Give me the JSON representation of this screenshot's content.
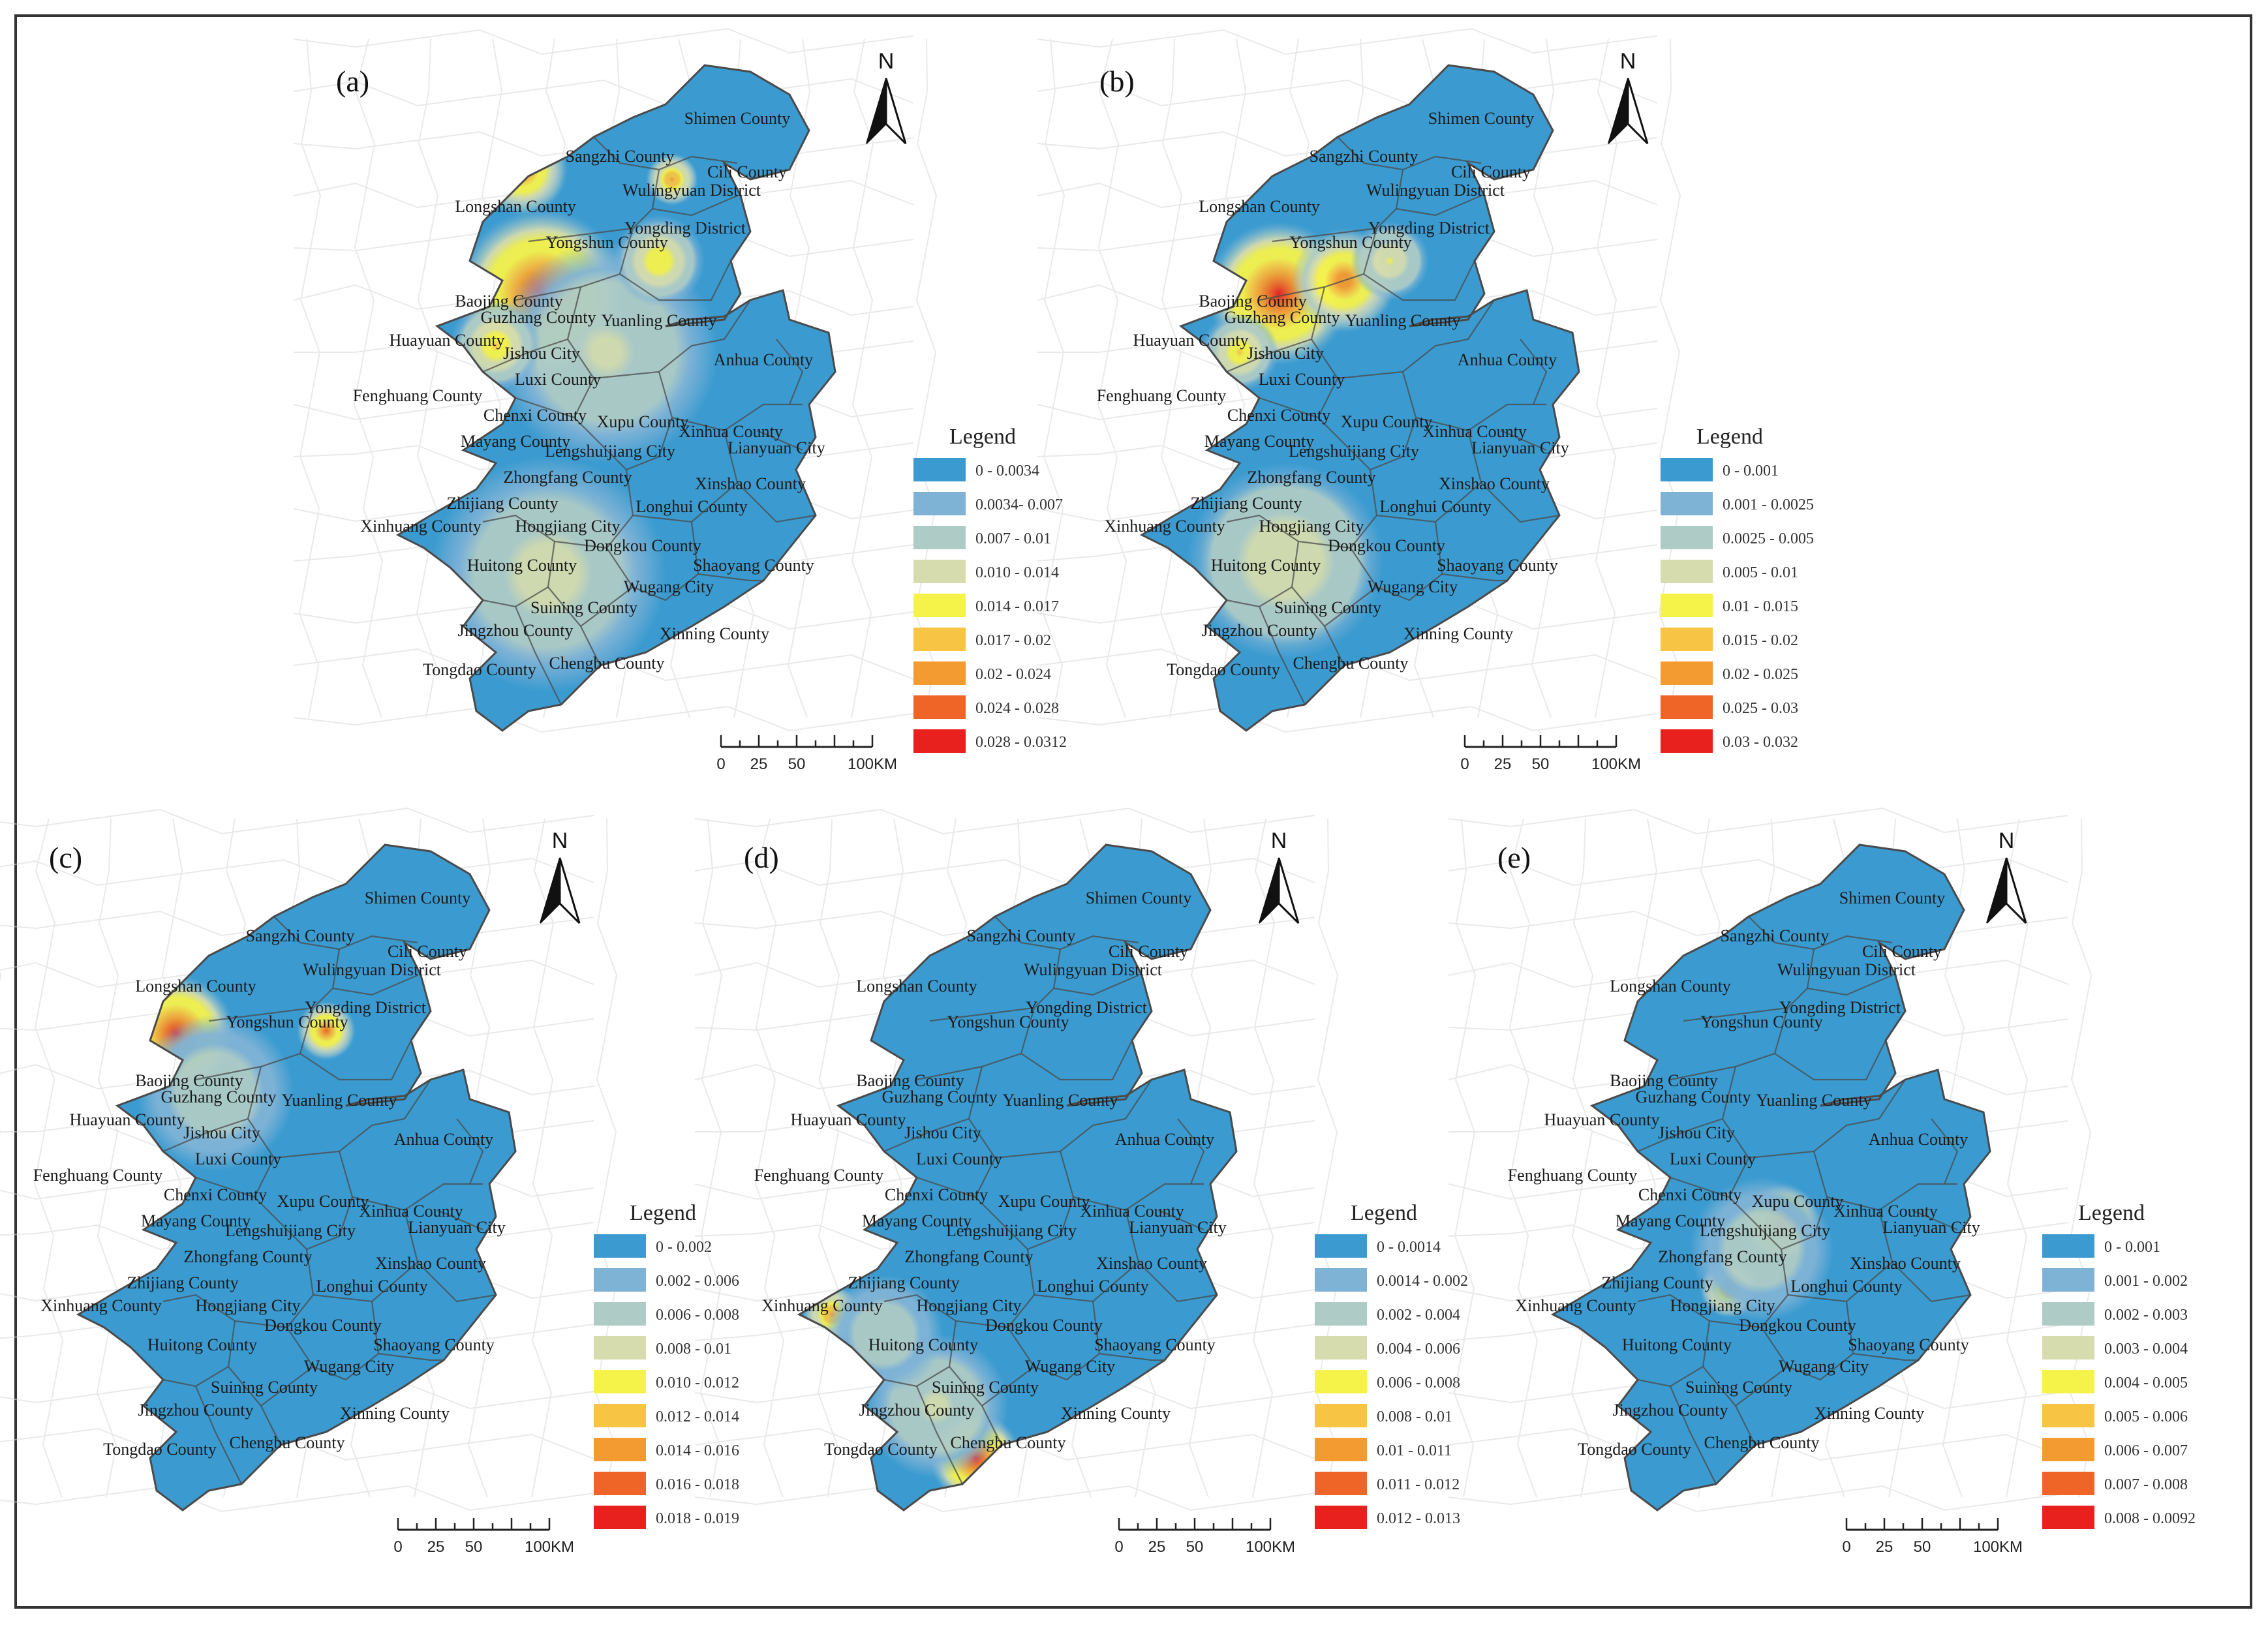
{
  "figure": {
    "panels": [
      {
        "id": "a",
        "label": "(a)",
        "legend_title": "Legend",
        "legend": [
          {
            "range": "0 - 0.0034",
            "color": "#3b9bd0"
          },
          {
            "range": "0.0034- 0.007",
            "color": "#7fb3d6"
          },
          {
            "range": "0.007 - 0.01",
            "color": "#aecbc6"
          },
          {
            "range": "0.010 - 0.014",
            "color": "#d6dcad"
          },
          {
            "range": "0.014 - 0.017",
            "color": "#f5f24a"
          },
          {
            "range": "0.017 - 0.02",
            "color": "#f7c443"
          },
          {
            "range": "0.02 - 0.024",
            "color": "#f39a30"
          },
          {
            "range": "0.024 - 0.028",
            "color": "#ef6427"
          },
          {
            "range": "0.028 - 0.0312",
            "color": "#e8201e"
          }
        ],
        "scale": [
          "0",
          "25",
          "50",
          "100KM"
        ],
        "north": "N",
        "hotspots": [
          "Jishou City",
          "Yongshun County",
          "Yongding District"
        ]
      },
      {
        "id": "b",
        "label": "(b)",
        "legend_title": "Legend",
        "legend": [
          {
            "range": "0 - 0.001",
            "color": "#3b9bd0"
          },
          {
            "range": "0.001 - 0.0025",
            "color": "#7fb3d6"
          },
          {
            "range": "0.0025 - 0.005",
            "color": "#aecbc6"
          },
          {
            "range": "0.005 - 0.01",
            "color": "#d6dcad"
          },
          {
            "range": "0.01 - 0.015",
            "color": "#f5f24a"
          },
          {
            "range": "0.015 - 0.02",
            "color": "#f7c443"
          },
          {
            "range": "0.02 - 0.025",
            "color": "#f39a30"
          },
          {
            "range": "0.025 - 0.03",
            "color": "#ef6427"
          },
          {
            "range": "0.03 - 0.032",
            "color": "#e8201e"
          }
        ],
        "scale": [
          "0",
          "25",
          "50",
          "100KM"
        ],
        "north": "N",
        "hotspots": [
          "Jishou City",
          "Guzhang County"
        ]
      },
      {
        "id": "c",
        "label": "(c)",
        "legend_title": "Legend",
        "legend": [
          {
            "range": "0 - 0.002",
            "color": "#3b9bd0"
          },
          {
            "range": "0.002 - 0.006",
            "color": "#7fb3d6"
          },
          {
            "range": "0.006 - 0.008",
            "color": "#aecbc6"
          },
          {
            "range": "0.008 - 0.01",
            "color": "#d6dcad"
          },
          {
            "range": "0.010 - 0.012",
            "color": "#f5f24a"
          },
          {
            "range": "0.012 - 0.014",
            "color": "#f7c443"
          },
          {
            "range": "0.014 - 0.016",
            "color": "#f39a30"
          },
          {
            "range": "0.016 - 0.018",
            "color": "#ef6427"
          },
          {
            "range": "0.018 - 0.019",
            "color": "#e8201e"
          }
        ],
        "scale": [
          "0",
          "25",
          "50",
          "100KM"
        ],
        "north": "N",
        "hotspots": [
          "Yongshun County",
          "Yongding District"
        ]
      },
      {
        "id": "d",
        "label": "(d)",
        "legend_title": "Legend",
        "legend": [
          {
            "range": "0 - 0.0014",
            "color": "#3b9bd0"
          },
          {
            "range": "0.0014 - 0.002",
            "color": "#7fb3d6"
          },
          {
            "range": "0.002 - 0.004",
            "color": "#aecbc6"
          },
          {
            "range": "0.004 - 0.006",
            "color": "#d6dcad"
          },
          {
            "range": "0.006 - 0.008",
            "color": "#f5f24a"
          },
          {
            "range": "0.008 - 0.01",
            "color": "#f7c443"
          },
          {
            "range": "0.01 - 0.011",
            "color": "#f39a30"
          },
          {
            "range": "0.011 - 0.012",
            "color": "#ef6427"
          },
          {
            "range": "0.012 - 0.013",
            "color": "#e8201e"
          }
        ],
        "scale": [
          "0",
          "25",
          "50",
          "100KM"
        ],
        "north": "N",
        "hotspots": [
          "Tongdao County",
          "Xinhuang County"
        ]
      },
      {
        "id": "e",
        "label": "(e)",
        "legend_title": "Legend",
        "legend": [
          {
            "range": "0 - 0.001",
            "color": "#3b9bd0"
          },
          {
            "range": "0.001 - 0.002",
            "color": "#7fb3d6"
          },
          {
            "range": "0.002 - 0.003",
            "color": "#aecbc6"
          },
          {
            "range": "0.003 - 0.004",
            "color": "#d6dcad"
          },
          {
            "range": "0.004 - 0.005",
            "color": "#f5f24a"
          },
          {
            "range": "0.005 - 0.006",
            "color": "#f7c443"
          },
          {
            "range": "0.006 - 0.007",
            "color": "#f39a30"
          },
          {
            "range": "0.007 - 0.008",
            "color": "#ef6427"
          },
          {
            "range": "0.008 - 0.0092",
            "color": "#e8201e"
          }
        ],
        "scale": [
          "0",
          "25",
          "50",
          "100KM"
        ],
        "north": "N",
        "hotspots": [
          "Lengshuijiang City",
          "Dongkou County"
        ]
      }
    ],
    "place_names": [
      "Shimen County",
      "Sangzhi County",
      "Cili County",
      "Wulingyuan District",
      "Longshan County",
      "Yongding District",
      "Yongshun County",
      "Baojing County",
      "Guzhang County",
      "Yuanling County",
      "Huayuan County",
      "Jishou City",
      "Anhua County",
      "Luxi County",
      "Fenghuang County",
      "Chenxi County",
      "Xupu County",
      "Xinhua County",
      "Mayang County",
      "Lengshuijiang City",
      "Lianyuan City",
      "Zhongfang County",
      "Xinshao County",
      "Zhijiang County",
      "Longhui County",
      "Xinhuang County",
      "Hongjiang City",
      "Dongkou County",
      "Huitong County",
      "Shaoyang County",
      "Wugang City",
      "Suining County",
      "Jingzhou County",
      "Xinning County",
      "Tongdao County",
      "Chengbu County"
    ],
    "colors": {
      "base": "#3b9bd0",
      "border": "#4a4a4a",
      "outline_map": "#d8d8d8"
    }
  }
}
